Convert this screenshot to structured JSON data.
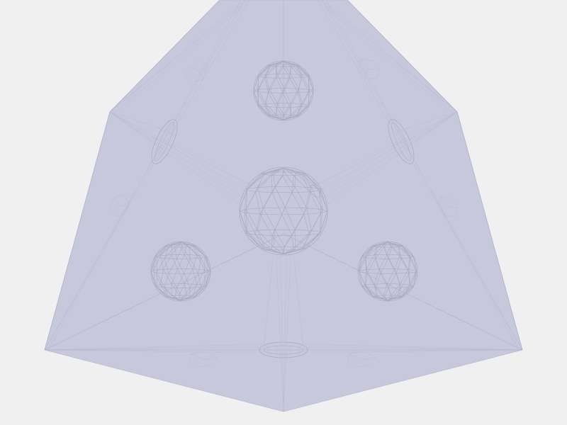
{
  "scene": {
    "type": "wireframe-3d-model",
    "subject": "dodecahedral-frame",
    "colors": {
      "background": "#f0f0f0",
      "face_fill": "#c7c8dc",
      "wire": "#aeb0c8",
      "sphere_wire": "#a8aac2"
    },
    "visible_nodes": 5,
    "visible_struts": 6
  }
}
